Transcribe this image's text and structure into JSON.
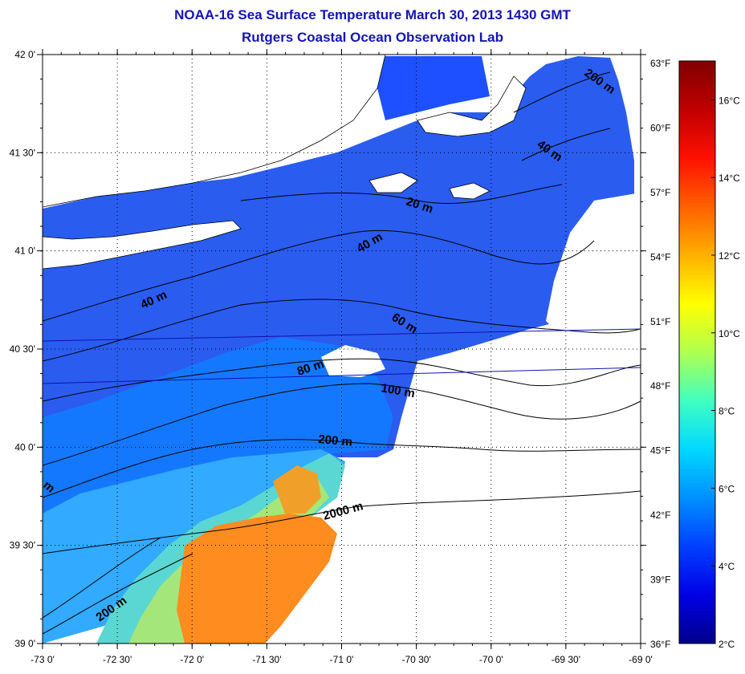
{
  "title": {
    "line1": "NOAA-16 Sea Surface Temperature March 30, 2013 1430 GMT",
    "line2": "Rutgers Coastal Ocean Observation Lab"
  },
  "map": {
    "lon_range": [
      -73,
      -69
    ],
    "lat_range": [
      39,
      42
    ],
    "lon_ticks": [
      "-73 0'",
      "-72 30'",
      "-72 0'",
      "-71 30'",
      "-71 0'",
      "-70 30'",
      "-70 0'",
      "-69 30'",
      "-69 0'"
    ],
    "lat_ticks": [
      "42 0'",
      "41 30'",
      "41 0'",
      "40 30'",
      "40 0'",
      "39 30'",
      "39 0'"
    ],
    "fahrenheit_ticks": [
      "63°F",
      "60°F",
      "57°F",
      "54°F",
      "51°F",
      "48°F",
      "45°F",
      "42°F",
      "39°F",
      "36°F"
    ],
    "depth_labels": [
      "200 m",
      "40 m",
      "20 m",
      "40 m",
      "40 m",
      "60 m",
      "80 m",
      "100 m",
      "200 m",
      "2000 m",
      "200 m",
      "m"
    ]
  },
  "colorbar": {
    "min_c": 2,
    "max_c": 17,
    "celsius_ticks": [
      "16°C",
      "14°C",
      "12°C",
      "10°C",
      "8°C",
      "6°C",
      "4°C",
      "2°C"
    ],
    "colors": [
      "#00008c",
      "#0000e6",
      "#0040ff",
      "#0090ff",
      "#00d8ff",
      "#40ffc0",
      "#b0ff50",
      "#ffff00",
      "#ffb000",
      "#ff6000",
      "#ff1000",
      "#c00000",
      "#800000"
    ]
  },
  "colors": {
    "title": "#1414b4",
    "land": "#ffffff",
    "cold": "#1e50ff",
    "cool": "#0a78ff",
    "mid": "#28b4ff",
    "teal": "#50dcd2",
    "green": "#a0e678",
    "warm": "#ff8c19"
  }
}
